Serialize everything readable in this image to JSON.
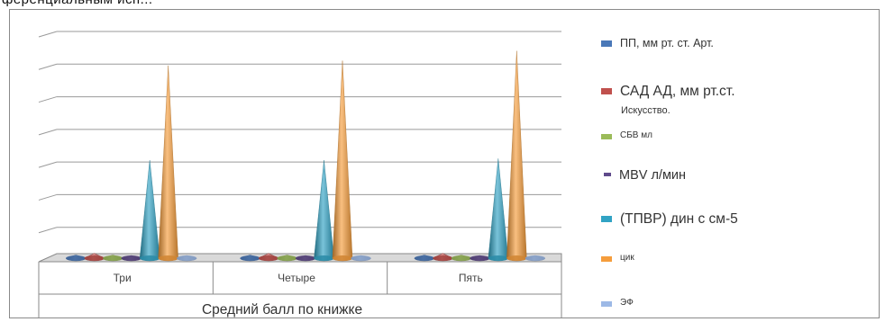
{
  "top_cutoff_text": "ференциальным исп...",
  "chart_data": {
    "type": "bar",
    "style": "3d-cones",
    "categories": [
      "Три",
      "Четыре",
      "Пять"
    ],
    "xlabel": "Средний балл по книжке",
    "ylabel": "",
    "title": "",
    "grid": true,
    "y_tick_labels_shown": false,
    "ylim": [
      0,
      7
    ],
    "legend_position": "right",
    "series": [
      {
        "name": "ПП, мм рт. ст. Арт.",
        "color": "#4a78b8",
        "values": [
          0.1,
          0.1,
          0.1
        ]
      },
      {
        "name": "САД АД, мм рт.ст.",
        "subtitle": "Искусство.",
        "color": "#c0504d",
        "values": [
          0.15,
          0.15,
          0.15
        ]
      },
      {
        "name": "СБВ мл",
        "color": "#9bbb59",
        "values": [
          0.1,
          0.1,
          0.1
        ]
      },
      {
        "name": "MBV л/мин",
        "color": "#5f4a8b",
        "values": [
          0.05,
          0.05,
          0.05
        ]
      },
      {
        "name": "(ТПВР) дин с см-5",
        "color": "#31a3c4",
        "values": [
          3.0,
          3.0,
          3.05
        ]
      },
      {
        "name": "цик",
        "color": "#f59d3c",
        "values": [
          5.9,
          6.05,
          6.35
        ]
      },
      {
        "name": "ЭФ",
        "color": "#9db9e6",
        "values": [
          0.05,
          0.05,
          0.05
        ]
      }
    ]
  }
}
